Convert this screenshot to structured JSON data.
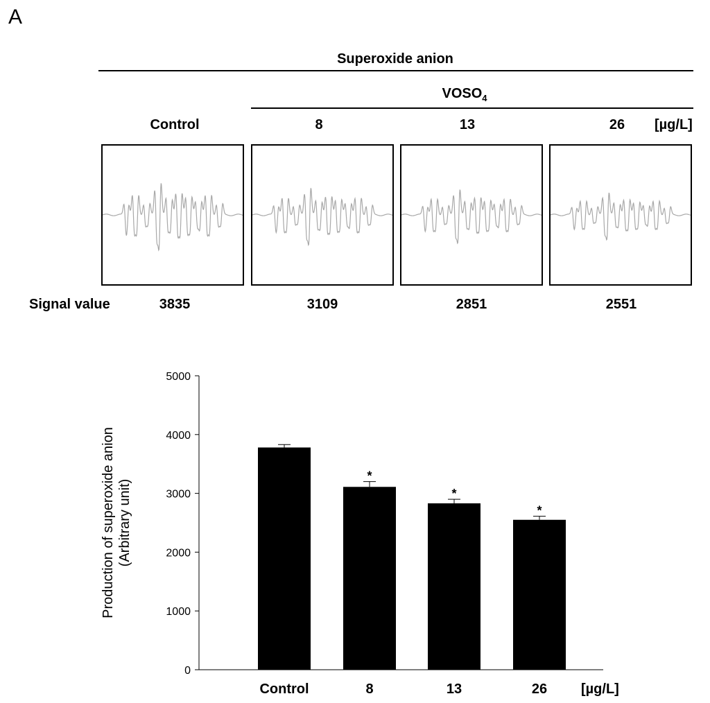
{
  "panel_label": "A",
  "header": {
    "group_title": "Superoxide anion",
    "treatment_label_main": "VOSO",
    "treatment_label_sub": "4",
    "unit": "[µg/L]"
  },
  "epr": {
    "row_label": "Signal value",
    "columns": [
      {
        "label": "Control",
        "signal": "3835",
        "amp": 1.0
      },
      {
        "label": "8",
        "signal": "3109",
        "amp": 0.85
      },
      {
        "label": "13",
        "signal": "2851",
        "amp": 0.8
      },
      {
        "label": "26",
        "signal": "2551",
        "amp": 0.7
      }
    ],
    "trace_color": "#a8a8a8"
  },
  "chart_data": {
    "type": "bar",
    "categories": [
      "Control",
      "8",
      "13",
      "26"
    ],
    "values": [
      3780,
      3110,
      2830,
      2550
    ],
    "errors": [
      50,
      90,
      70,
      60
    ],
    "significance": [
      "",
      "*",
      "*",
      "*"
    ],
    "x_unit": "[µg/L]",
    "ylabel_line1": "Production of superoxide anion",
    "ylabel_line2": "(Arbitrary unit)",
    "ylim": [
      0,
      5000
    ],
    "yticks": [
      0,
      1000,
      2000,
      3000,
      4000,
      5000
    ],
    "bar_color": "#000000"
  }
}
